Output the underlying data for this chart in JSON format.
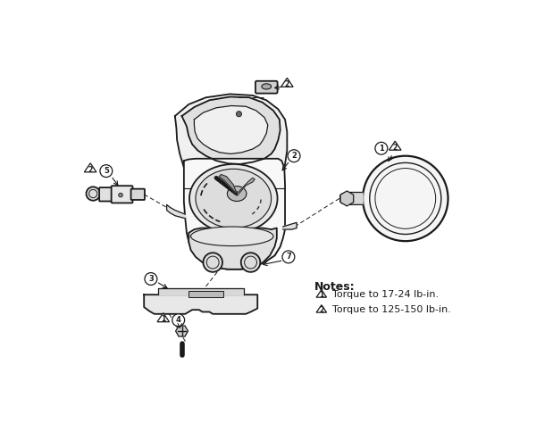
{
  "bg_color": "#ffffff",
  "line_color": "#1a1a1a",
  "notes_title": "Notes:",
  "note1_text": "Torque to 17-24 lb-in.",
  "note2_text": "Torque to 125-150 lb-in.",
  "note1_num": "1",
  "note2_num": "2",
  "figsize": [
    6.0,
    4.74
  ],
  "dpi": 100,
  "body_fill": "#f0f0f0",
  "body_fill2": "#e0e0e0",
  "body_fill3": "#d0d0d0",
  "body_fill4": "#c0c0c0"
}
